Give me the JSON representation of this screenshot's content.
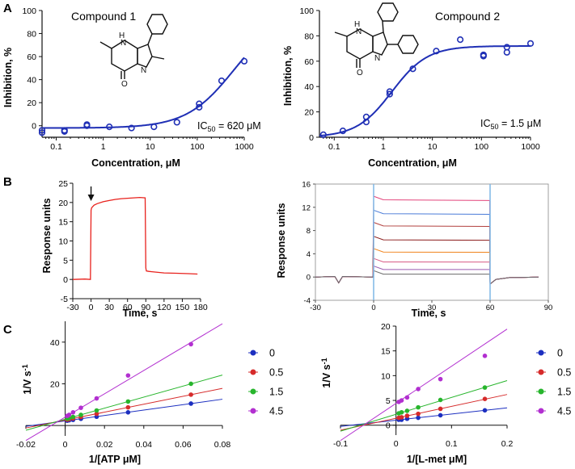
{
  "chart_data": [
    {
      "id": "A1",
      "panel": "A",
      "type": "scatter",
      "title": "Compound 1",
      "xlabel": "Concentration, μM",
      "ylabel": "Inhibition, %",
      "xscale": "log",
      "xlim": [
        0.05,
        1000
      ],
      "ylim": [
        -10,
        100
      ],
      "xticks": [
        0.1,
        1,
        10,
        100,
        1000
      ],
      "xtick_labels": [
        "0.1",
        "1",
        "10",
        "100",
        "1000"
      ],
      "yticks": [
        0,
        20,
        40,
        60,
        80,
        100
      ],
      "ytick_labels": [
        "0",
        "20",
        "40",
        "60",
        "80",
        "100"
      ],
      "annotation": "IC50 = 620 μM",
      "annotation_main": "IC",
      "annotation_sub": "50",
      "annotation_rest": " = 620 μM",
      "color": "#1f2fb5",
      "fit": {
        "ic50": 620,
        "top": 100,
        "bottom": -2,
        "hill": 0.85
      },
      "points": [
        {
          "x": 0.05,
          "y": -6
        },
        {
          "x": 0.05,
          "y": -4
        },
        {
          "x": 0.15,
          "y": -5
        },
        {
          "x": 0.15,
          "y": -4
        },
        {
          "x": 0.45,
          "y": 0
        },
        {
          "x": 0.45,
          "y": 1
        },
        {
          "x": 1.35,
          "y": -1
        },
        {
          "x": 4,
          "y": -2
        },
        {
          "x": 12,
          "y": -1
        },
        {
          "x": 37,
          "y": 3
        },
        {
          "x": 110,
          "y": 16
        },
        {
          "x": 110,
          "y": 19
        },
        {
          "x": 330,
          "y": 39
        },
        {
          "x": 1000,
          "y": 56
        }
      ]
    },
    {
      "id": "A2",
      "panel": "A",
      "type": "scatter",
      "title": "Compound 2",
      "xlabel": "Concentration, μM",
      "ylabel": "Inhibition, %",
      "xscale": "log",
      "xlim": [
        0.05,
        1000
      ],
      "ylim": [
        0,
        100
      ],
      "xticks": [
        0.1,
        1,
        10,
        100,
        1000
      ],
      "xtick_labels": [
        "0.1",
        "1",
        "10",
        "100",
        "1000"
      ],
      "yticks": [
        0,
        20,
        40,
        60,
        80,
        100
      ],
      "ytick_labels": [
        "0",
        "20",
        "40",
        "60",
        "80",
        "100"
      ],
      "annotation": "IC50 = 1.5 μM",
      "annotation_main": "IC",
      "annotation_sub": "50",
      "annotation_rest": " = 1.5 μM",
      "color": "#1f2fb5",
      "fit": {
        "ic50": 1.5,
        "top": 72,
        "bottom": 0,
        "hill": 1.2
      },
      "points": [
        {
          "x": 0.06,
          "y": 2
        },
        {
          "x": 0.15,
          "y": 5
        },
        {
          "x": 0.45,
          "y": 12
        },
        {
          "x": 0.45,
          "y": 16
        },
        {
          "x": 1.35,
          "y": 34
        },
        {
          "x": 1.35,
          "y": 36
        },
        {
          "x": 4,
          "y": 54
        },
        {
          "x": 12,
          "y": 68
        },
        {
          "x": 37,
          "y": 77
        },
        {
          "x": 110,
          "y": 64
        },
        {
          "x": 110,
          "y": 65
        },
        {
          "x": 330,
          "y": 67
        },
        {
          "x": 330,
          "y": 71
        },
        {
          "x": 1000,
          "y": 74
        }
      ]
    },
    {
      "id": "B1",
      "panel": "B",
      "type": "line",
      "xlabel": "Time, s",
      "ylabel": "Response units",
      "xlim": [
        -30,
        180
      ],
      "ylim": [
        -5,
        25
      ],
      "xticks": [
        -30,
        0,
        30,
        60,
        90,
        120,
        150,
        180
      ],
      "xtick_labels": [
        "-30",
        "0",
        "30",
        "60",
        "90",
        "120",
        "150",
        "180"
      ],
      "yticks": [
        -5,
        0,
        5,
        10,
        15,
        20,
        25
      ],
      "ytick_labels": [
        "-5",
        "0",
        "5",
        "10",
        "15",
        "20",
        "25"
      ],
      "arrow_at_x": 0,
      "series": [
        {
          "name": "response",
          "color": "#e8211c",
          "x": [
            -30,
            -10,
            -1,
            0,
            1,
            5,
            10,
            20,
            30,
            40,
            50,
            60,
            70,
            80,
            89,
            90,
            91,
            95,
            100,
            120,
            140,
            160,
            175
          ],
          "y": [
            0.0,
            0.1,
            0.0,
            18.0,
            18.6,
            19.3,
            19.7,
            20.2,
            20.5,
            20.8,
            21.0,
            21.1,
            21.2,
            21.3,
            21.2,
            3.0,
            2.2,
            2.1,
            2.0,
            1.7,
            1.6,
            1.5,
            1.4
          ]
        }
      ]
    },
    {
      "id": "B2",
      "panel": "B",
      "type": "line",
      "xlabel": "Time, s",
      "ylabel": "Response units",
      "xlim": [
        -30,
        90
      ],
      "ylim": [
        -4,
        16
      ],
      "xticks": [
        -30,
        0,
        30,
        60,
        90
      ],
      "xtick_labels": [
        "-30",
        "0",
        "30",
        "60",
        "90"
      ],
      "yticks": [
        -4,
        0,
        4,
        8,
        12,
        16
      ],
      "ytick_labels": [
        "-4",
        "0",
        "4",
        "8",
        "12",
        "16"
      ],
      "levels": [
        13.3,
        10.9,
        8.8,
        6.4,
        4.3,
        2.6,
        1.3,
        0.5
      ],
      "colors": [
        "#e3447b",
        "#4a7bd8",
        "#b2403e",
        "#8a1a1a",
        "#f0831c",
        "#d85c86",
        "#9a5ab0",
        "#6a6a6a"
      ],
      "start_x": 0,
      "end_x": 60
    },
    {
      "id": "C1",
      "panel": "C",
      "type": "scatter",
      "xlabel": "1/[ATP μM]",
      "ylabel": "1/V s-1",
      "ylabel_main": "1/V s",
      "ylabel_sup": "-1",
      "xlim": [
        -0.02,
        0.08
      ],
      "ylim": [
        -5,
        50
      ],
      "xticks": [
        -0.02,
        0,
        0.02,
        0.04,
        0.06,
        0.08
      ],
      "xtick_labels": [
        "-0.02",
        "0",
        "0.02",
        "0.04",
        "0.06",
        "0.08"
      ],
      "yticks": [
        20,
        40
      ],
      "ytick_labels": [
        "20",
        "40"
      ],
      "series": [
        {
          "name": "0",
          "color": "#1c2fc0",
          "line": [
            2.2,
            130
          ],
          "x": [
            0.001,
            0.002,
            0.004,
            0.008,
            0.016,
            0.032,
            0.064
          ],
          "y": [
            2.3,
            2.5,
            2.7,
            3.2,
            4.2,
            6.3,
            10.5
          ]
        },
        {
          "name": "0.5",
          "color": "#d62b2b",
          "line": [
            2.6,
            190
          ],
          "x": [
            0.001,
            0.002,
            0.004,
            0.008,
            0.016,
            0.032,
            0.064
          ],
          "y": [
            2.8,
            3.0,
            3.4,
            4.1,
            5.6,
            8.7,
            14.8
          ]
        },
        {
          "name": "1.5",
          "color": "#27b52c",
          "line": [
            3.0,
            265
          ],
          "x": [
            0.001,
            0.002,
            0.004,
            0.008,
            0.016,
            0.032,
            0.064
          ],
          "y": [
            3.3,
            3.5,
            4.1,
            5.1,
            7.2,
            11.5,
            20.0
          ]
        },
        {
          "name": "4.5",
          "color": "#b22fd0",
          "line": [
            4.0,
            560
          ],
          "x": [
            0.001,
            0.002,
            0.004,
            0.008,
            0.016,
            0.032,
            0.064
          ],
          "y": [
            4.6,
            5.1,
            6.3,
            8.5,
            13.0,
            24.0,
            39.0
          ]
        }
      ]
    },
    {
      "id": "C2",
      "panel": "C",
      "type": "scatter",
      "xlabel": "1/[L-met μM]",
      "ylabel": "1/V s-1",
      "ylabel_main": "1/V s",
      "ylabel_sup": "-1",
      "xlim": [
        -0.1,
        0.2
      ],
      "ylim": [
        -2,
        20
      ],
      "xticks": [
        -0.1,
        0,
        0.1,
        0.2
      ],
      "xtick_labels": [
        "-0.1",
        "0",
        "0.1",
        "0.2"
      ],
      "yticks": [
        0,
        5,
        10,
        15,
        20
      ],
      "ytick_labels": [
        "0",
        "5",
        "10",
        "15",
        "20"
      ],
      "series": [
        {
          "name": "0",
          "color": "#1c2fc0",
          "line": [
            1.0,
            12.5
          ],
          "x": [
            0.005,
            0.01,
            0.02,
            0.04,
            0.08,
            0.16
          ],
          "y": [
            1.1,
            1.1,
            1.3,
            1.5,
            2.0,
            3.0
          ]
        },
        {
          "name": "0.5",
          "color": "#d62b2b",
          "line": [
            1.4,
            24
          ],
          "x": [
            0.005,
            0.01,
            0.02,
            0.04,
            0.08,
            0.16
          ],
          "y": [
            1.5,
            1.6,
            1.9,
            2.3,
            3.3,
            5.3
          ]
        },
        {
          "name": "1.5",
          "color": "#27b52c",
          "line": [
            2.2,
            34
          ],
          "x": [
            0.005,
            0.01,
            0.02,
            0.04,
            0.08,
            0.16
          ],
          "y": [
            2.4,
            2.6,
            2.9,
            3.6,
            5.1,
            7.6
          ]
        },
        {
          "name": "4.5",
          "color": "#b22fd0",
          "line": [
            4.4,
            75
          ],
          "x": [
            0.005,
            0.01,
            0.02,
            0.04,
            0.08,
            0.16
          ],
          "y": [
            4.7,
            5.0,
            5.6,
            7.3,
            9.3,
            14.0
          ]
        }
      ]
    }
  ],
  "panels": {
    "A": "A",
    "B": "B",
    "C": "C"
  }
}
